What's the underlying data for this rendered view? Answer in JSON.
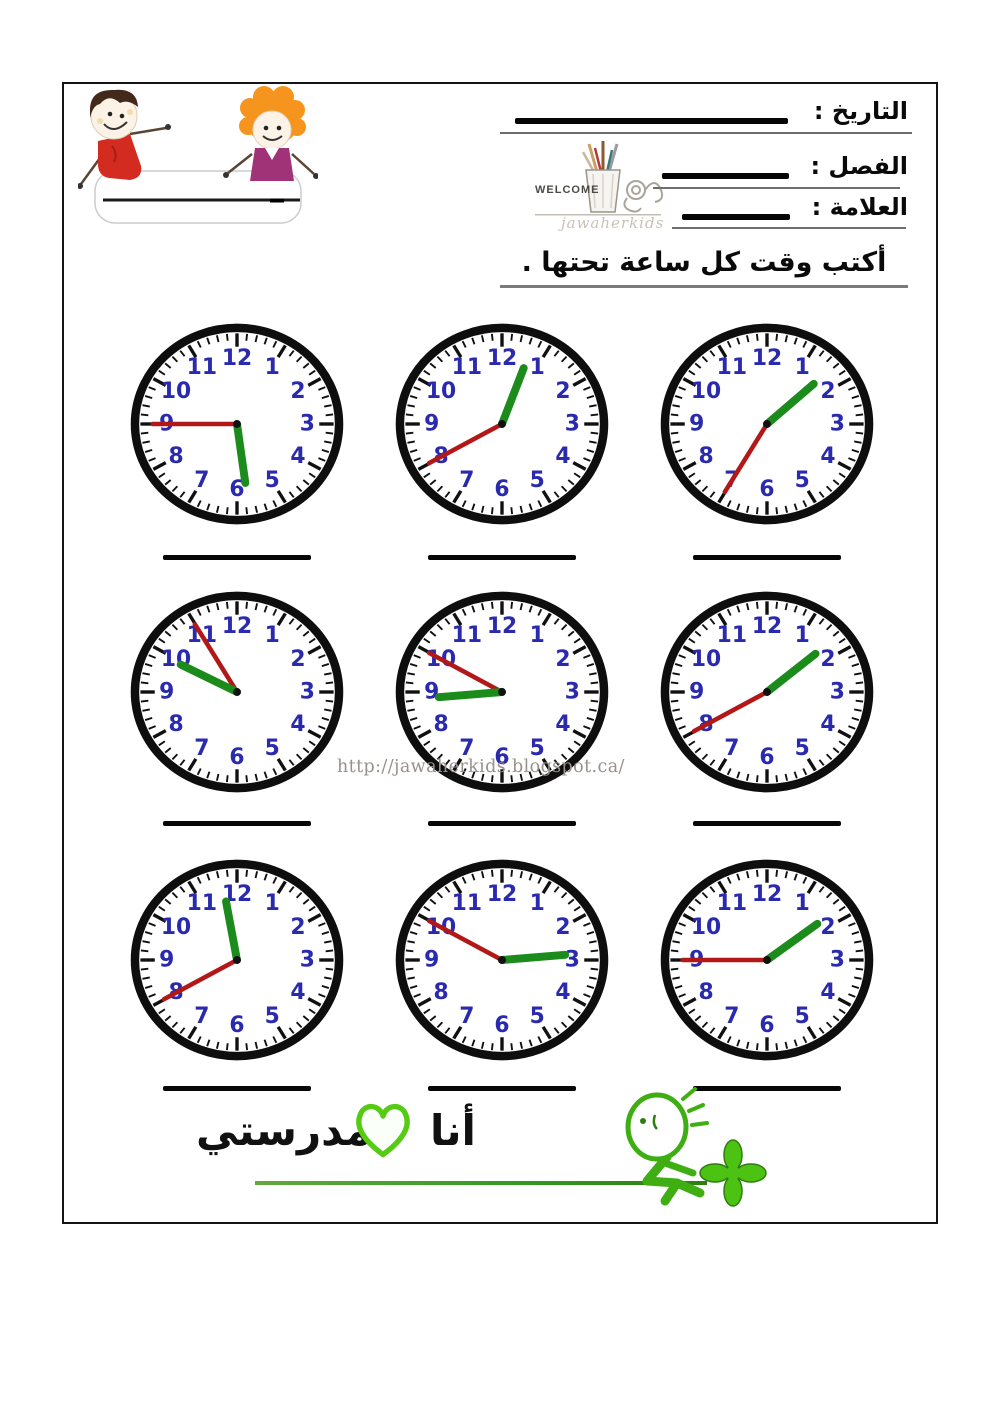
{
  "document": {
    "title": "telling-time-practice-worksheet",
    "header": {
      "fields": [
        {
          "id": "date",
          "label": "التاريخ :"
        },
        {
          "id": "class",
          "label": "الفصل :"
        },
        {
          "id": "mark",
          "label": "العلامة :"
        }
      ],
      "logo": {
        "welcome": "WELCOME",
        "brand": "jawaherkids"
      },
      "instruction": "أكتب وقت كل ساعة تحتها ."
    },
    "watermark": "http://jawaherkids.blogspot.ca/",
    "footer": {
      "word_right": "أنا",
      "word_left": "مدرستي"
    }
  },
  "clock_face_numbers": [
    1,
    2,
    3,
    4,
    5,
    6,
    7,
    8,
    9,
    10,
    11,
    12
  ],
  "clocks": [
    {
      "row": 1,
      "col": 1,
      "hour": 5,
      "minute": 45,
      "time_shown": "5:45",
      "answer": ""
    },
    {
      "row": 1,
      "col": 2,
      "hour": 12,
      "minute": 40,
      "time_shown": "12:40",
      "answer": ""
    },
    {
      "row": 1,
      "col": 3,
      "hour": 1,
      "minute": 35,
      "time_shown": "1:35",
      "answer": ""
    },
    {
      "row": 2,
      "col": 1,
      "hour": 9,
      "minute": 55,
      "time_shown": "9:55",
      "answer": ""
    },
    {
      "row": 2,
      "col": 2,
      "hour": 8,
      "minute": 50,
      "time_shown": "8:50",
      "answer": ""
    },
    {
      "row": 2,
      "col": 3,
      "hour": 1,
      "minute": 40,
      "time_shown": "1:40",
      "answer": ""
    },
    {
      "row": 3,
      "col": 1,
      "hour": 11,
      "minute": 40,
      "time_shown": "11:40",
      "answer": ""
    },
    {
      "row": 3,
      "col": 2,
      "hour": 2,
      "minute": 50,
      "time_shown": "2:50",
      "answer": ""
    },
    {
      "row": 3,
      "col": 3,
      "hour": 1,
      "minute": 45,
      "time_shown": "1:45",
      "answer": ""
    }
  ],
  "colors": {
    "clock_rim": "#0e0e0e",
    "clock_tick": "#101010",
    "clock_number_blue": "#2a2aae",
    "minute_hand_red": "#b21818",
    "hour_hand_green": "#1b8c1b",
    "footer_green": "#3fae12",
    "heart_green": "#55cb13",
    "boy_shirt_red": "#d32b1f",
    "girl_top_magenta": "#a03277",
    "girl_hair_orange": "#f5951d"
  }
}
